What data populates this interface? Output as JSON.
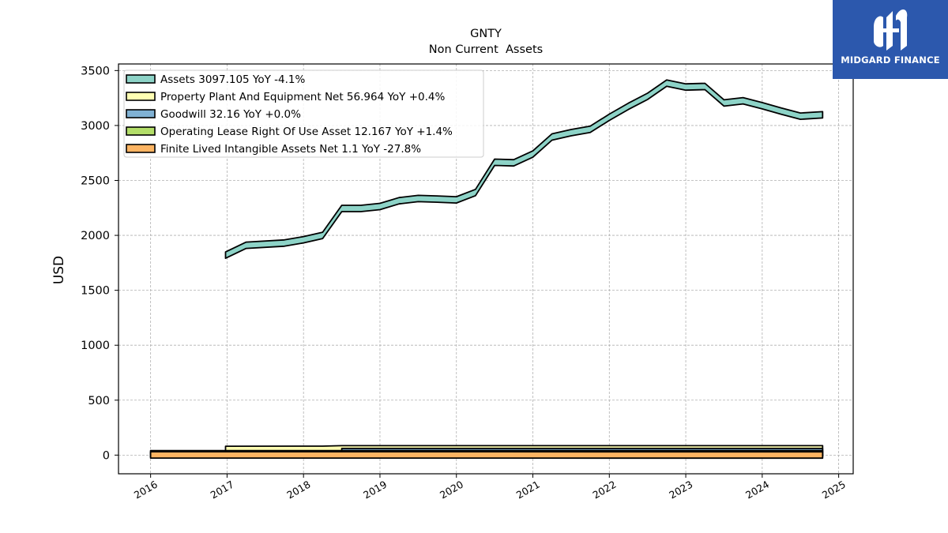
{
  "logo": {
    "text": "MIDGARD FINANCE",
    "background": "#2c58ad"
  },
  "chart_data": {
    "type": "area",
    "title": "GNTY",
    "subtitle": "Non Current  Assets",
    "xlabel": "",
    "ylabel": "USD",
    "xlim": [
      2015.58,
      2025.19
    ],
    "ylim": [
      -170,
      3560
    ],
    "x_ticks": [
      2016,
      2017,
      2018,
      2019,
      2020,
      2021,
      2022,
      2023,
      2024,
      2025
    ],
    "y_ticks": [
      0,
      500,
      1000,
      1500,
      2000,
      2500,
      3000,
      3500
    ],
    "grid": true,
    "legend_position": "top-left",
    "series": [
      {
        "name": "Assets",
        "legend_label": "Assets  3097.105 YoY -4.1%",
        "color": "#8dd3c7",
        "x": [
          2016.98,
          2017.25,
          2017.75,
          2018.0,
          2018.25,
          2018.5,
          2018.75,
          2019.0,
          2019.25,
          2019.5,
          2019.75,
          2020.0,
          2020.25,
          2020.5,
          2020.75,
          2021.0,
          2021.25,
          2021.5,
          2021.75,
          2022.0,
          2022.25,
          2022.5,
          2022.75,
          2023.0,
          2023.25,
          2023.5,
          2023.75,
          2024.0,
          2024.25,
          2024.5,
          2024.79
        ],
        "y": [
          1820,
          1910,
          1930,
          1960,
          2000,
          2245,
          2245,
          2263,
          2315,
          2335,
          2330,
          2323,
          2390,
          2665,
          2660,
          2740,
          2895,
          2935,
          2965,
          3075,
          3175,
          3265,
          3385,
          3350,
          3355,
          3205,
          3225,
          3180,
          3130,
          3085,
          3097
        ]
      },
      {
        "name": "Property Plant And Equipment Net",
        "legend_label": "Property Plant And Equipment Net  56.964 YoY +0.4%",
        "color": "#ffffb3",
        "x": [
          2016.98,
          2018.25,
          2018.5,
          2024.79
        ],
        "y": [
          52,
          53,
          57,
          57
        ]
      },
      {
        "name": "Goodwill",
        "legend_label": "Goodwill  32.16 YoY +0.0%",
        "color": "#80b1d3",
        "x": [
          2018.5,
          2024.79
        ],
        "y": [
          32.16,
          32.16
        ]
      },
      {
        "name": "Operating Lease Right Of Use Asset",
        "legend_label": "Operating Lease Right Of Use Asset  12.167 YoY +1.4%",
        "color": "#b3de69",
        "x": [
          2016.0,
          2024.79
        ],
        "y": [
          12,
          12.167
        ]
      },
      {
        "name": "Finite Lived Intangible Assets Net",
        "legend_label": "Finite Lived Intangible Assets Net  1.1 YoY -27.8%",
        "color": "#fdb462",
        "x": [
          2016.0,
          2024.79
        ],
        "y": [
          1.5,
          1.1
        ]
      }
    ]
  }
}
